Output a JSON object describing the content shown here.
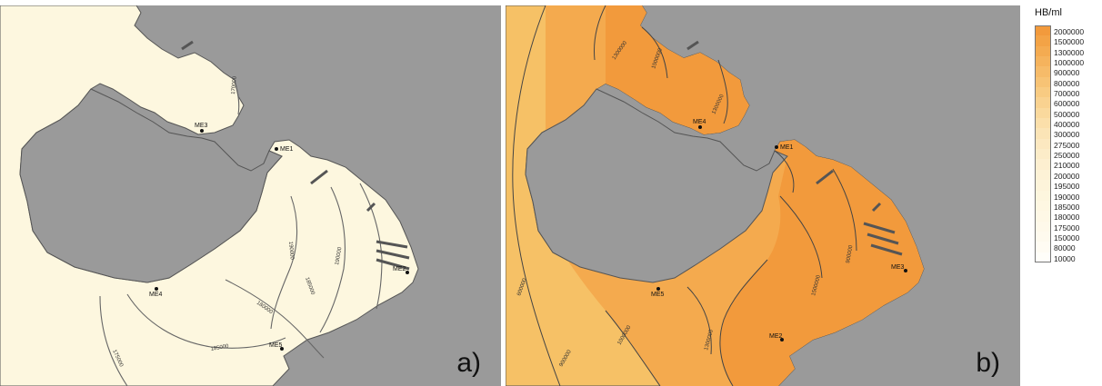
{
  "legend": {
    "title": "HB/ml",
    "items": [
      {
        "label": "2000000",
        "color": "#f29a3c"
      },
      {
        "label": "1500000",
        "color": "#f3a346"
      },
      {
        "label": "1300000",
        "color": "#f4ab51"
      },
      {
        "label": "1000000",
        "color": "#f5b35d"
      },
      {
        "label": "900000",
        "color": "#f6bb69"
      },
      {
        "label": "800000",
        "color": "#f7c375"
      },
      {
        "label": "700000",
        "color": "#f8cb82"
      },
      {
        "label": "600000",
        "color": "#f9d290"
      },
      {
        "label": "500000",
        "color": "#fad99d"
      },
      {
        "label": "400000",
        "color": "#fbdfaa"
      },
      {
        "label": "300000",
        "color": "#fbe4b6"
      },
      {
        "label": "275000",
        "color": "#fce8c0"
      },
      {
        "label": "250000",
        "color": "#fcecc8"
      },
      {
        "label": "210000",
        "color": "#fdefd0"
      },
      {
        "label": "200000",
        "color": "#fdf2d6"
      },
      {
        "label": "195000",
        "color": "#fdf4da"
      },
      {
        "label": "190000",
        "color": "#fdf6de"
      },
      {
        "label": "185000",
        "color": "#fef7e2"
      },
      {
        "label": "180000",
        "color": "#fef8e6"
      },
      {
        "label": "175000",
        "color": "#fef9ea"
      },
      {
        "label": "150000",
        "color": "#fefaee"
      },
      {
        "label": "80000",
        "color": "#fffcf3"
      },
      {
        "label": "10000",
        "color": "#fffef9"
      }
    ]
  },
  "panels": {
    "a": {
      "label": "a)",
      "stations": [
        "ME3",
        "ME1",
        "ME4",
        "ME5",
        "ME2"
      ],
      "contours": [
        "170000",
        "190000",
        "185000",
        "180000",
        "185000",
        "190000",
        "175000"
      ]
    },
    "b": {
      "label": "b)",
      "stations": [
        "ME4",
        "ME1",
        "ME5",
        "ME2",
        "ME3"
      ],
      "contours": [
        "1300000",
        "1300000",
        "1500000",
        "600000",
        "1000000",
        "1300000",
        "1500000",
        "900000",
        "900000"
      ]
    }
  },
  "colors": {
    "sea": "#9a9a9a",
    "land_a": "#fdf7df",
    "land_b_outer": "#f6c166",
    "land_b_mid": "#f4aa4e",
    "land_b_inner": "#f29a3c"
  }
}
